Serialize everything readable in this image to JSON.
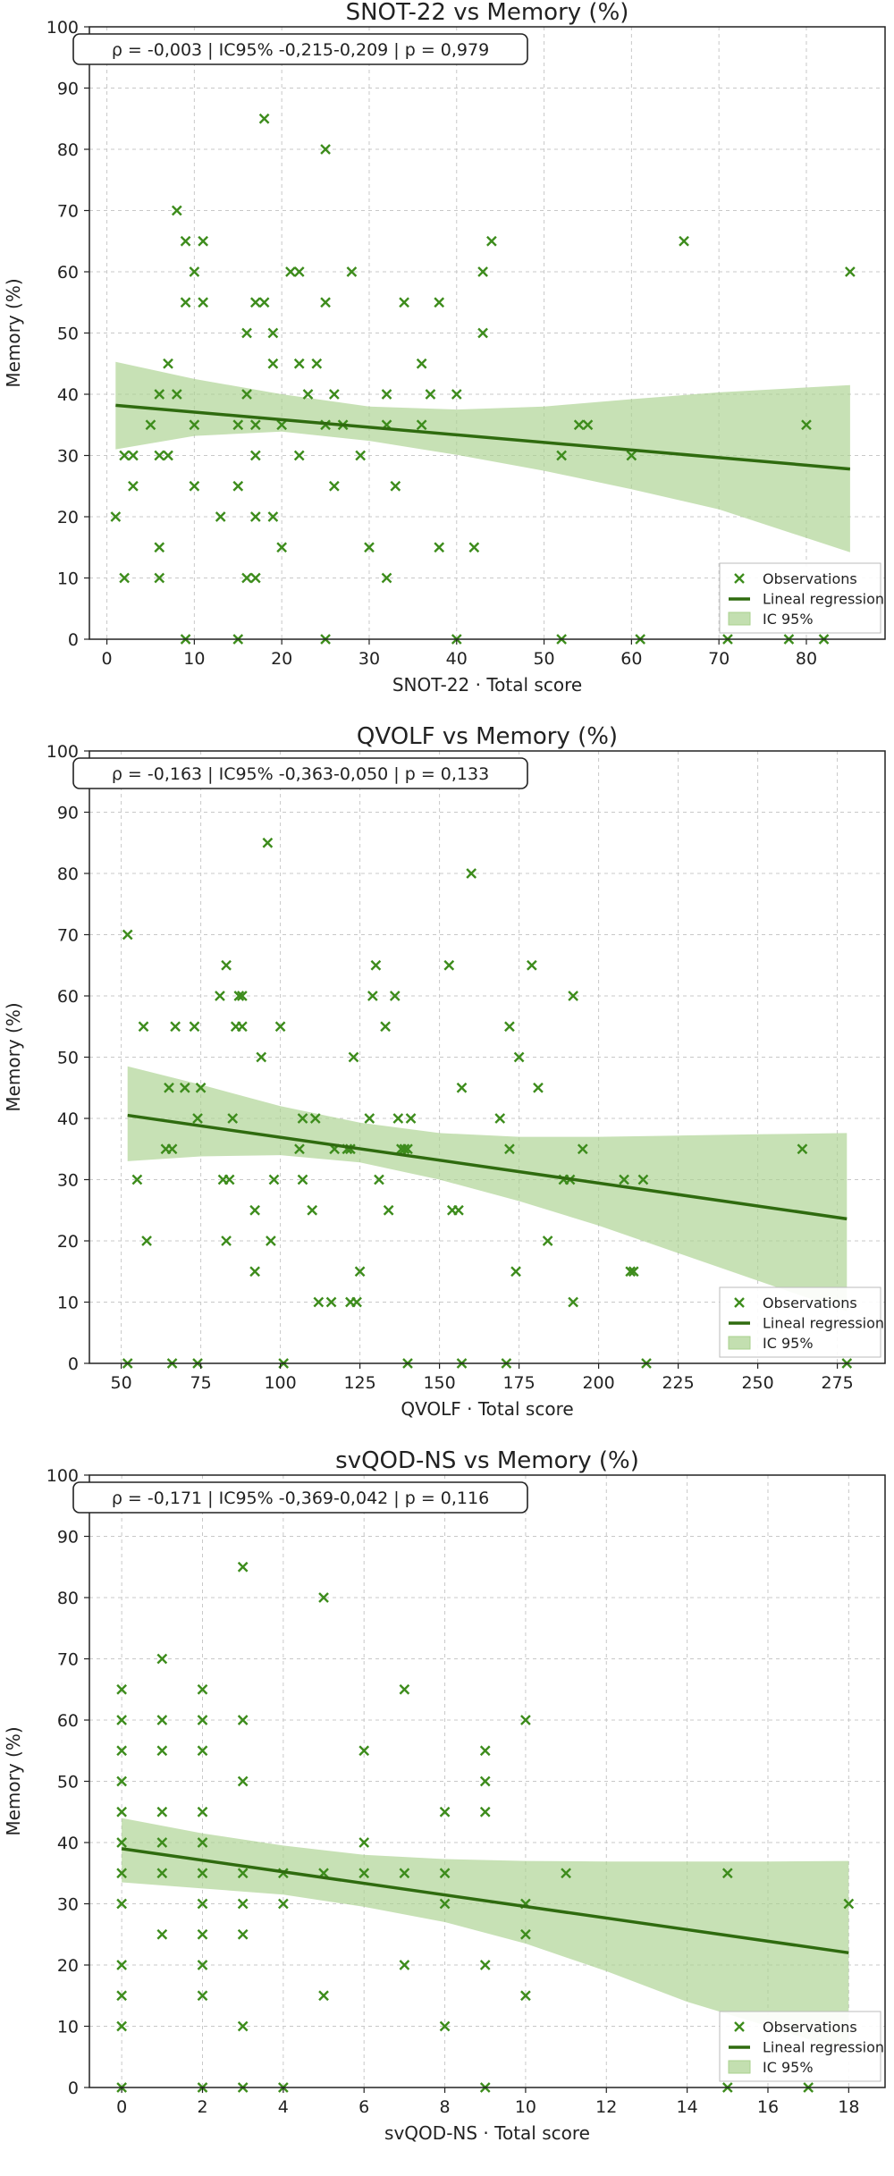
{
  "colors": {
    "marker": "#3d8c1c",
    "line": "#2f6b0f",
    "band": "#a9d18e",
    "grid": "#c8c8c8",
    "axis": "#222222",
    "text": "#222222"
  },
  "chart_data": [
    {
      "type": "scatter",
      "title": "SNOT-22 vs Memory (%)",
      "xlabel": "SNOT-22 · Total score",
      "ylabel": "Memory (%)",
      "stats": "ρ = -0,003  |  IC95% -0,215-0,209  |  p = 0,979",
      "xlim": [
        -2,
        89
      ],
      "ylim": [
        0,
        100
      ],
      "xticks": [
        0,
        10,
        20,
        30,
        40,
        50,
        60,
        70,
        80
      ],
      "yticks": [
        0,
        10,
        20,
        30,
        40,
        50,
        60,
        70,
        80,
        90,
        100
      ],
      "grid": true,
      "legend": {
        "position": "lower-right",
        "entries": [
          "Observations",
          "Lineal regression",
          "IC 95%"
        ]
      },
      "regression": {
        "x": [
          1,
          85
        ],
        "y": [
          38.2,
          27.8
        ]
      },
      "ci_band": {
        "x": [
          1,
          10,
          20,
          30,
          40,
          50,
          60,
          70,
          85
        ],
        "upper": [
          45.3,
          42.5,
          40.0,
          38.0,
          37.5,
          38.0,
          39.2,
          40.3,
          41.5
        ],
        "lower": [
          31.0,
          33.2,
          33.9,
          32.4,
          30.1,
          27.5,
          24.5,
          21.2,
          14.2
        ]
      },
      "points": [
        [
          1,
          20
        ],
        [
          2,
          10
        ],
        [
          2,
          30
        ],
        [
          3,
          30
        ],
        [
          3,
          25
        ],
        [
          5,
          35
        ],
        [
          6,
          40
        ],
        [
          6,
          30
        ],
        [
          6,
          15
        ],
        [
          6,
          10
        ],
        [
          7,
          45
        ],
        [
          7,
          30
        ],
        [
          8,
          40
        ],
        [
          8,
          70
        ],
        [
          9,
          65
        ],
        [
          9,
          55
        ],
        [
          9,
          0
        ],
        [
          10,
          60
        ],
        [
          10,
          35
        ],
        [
          10,
          25
        ],
        [
          11,
          65
        ],
        [
          11,
          55
        ],
        [
          13,
          20
        ],
        [
          15,
          25
        ],
        [
          15,
          35
        ],
        [
          15,
          0
        ],
        [
          16,
          50
        ],
        [
          16,
          40
        ],
        [
          16,
          10
        ],
        [
          17,
          10
        ],
        [
          17,
          55
        ],
        [
          17,
          35
        ],
        [
          17,
          30
        ],
        [
          17,
          20
        ],
        [
          18,
          55
        ],
        [
          18,
          85
        ],
        [
          19,
          50
        ],
        [
          19,
          45
        ],
        [
          19,
          20
        ],
        [
          20,
          35
        ],
        [
          20,
          15
        ],
        [
          21,
          60
        ],
        [
          22,
          60
        ],
        [
          22,
          45
        ],
        [
          22,
          30
        ],
        [
          23,
          40
        ],
        [
          24,
          45
        ],
        [
          25,
          80
        ],
        [
          25,
          55
        ],
        [
          25,
          35
        ],
        [
          25,
          0
        ],
        [
          26,
          40
        ],
        [
          26,
          25
        ],
        [
          27,
          35
        ],
        [
          28,
          60
        ],
        [
          29,
          30
        ],
        [
          30,
          15
        ],
        [
          32,
          40
        ],
        [
          32,
          35
        ],
        [
          32,
          10
        ],
        [
          33,
          25
        ],
        [
          34,
          55
        ],
        [
          36,
          45
        ],
        [
          36,
          35
        ],
        [
          37,
          40
        ],
        [
          38,
          55
        ],
        [
          38,
          15
        ],
        [
          40,
          40
        ],
        [
          40,
          0
        ],
        [
          42,
          15
        ],
        [
          43,
          60
        ],
        [
          43,
          50
        ],
        [
          44,
          65
        ],
        [
          52,
          30
        ],
        [
          52,
          0
        ],
        [
          54,
          35
        ],
        [
          55,
          35
        ],
        [
          60,
          30
        ],
        [
          61,
          0
        ],
        [
          66,
          65
        ],
        [
          71,
          0
        ],
        [
          78,
          0
        ],
        [
          80,
          35
        ],
        [
          82,
          0
        ],
        [
          85,
          60
        ]
      ]
    },
    {
      "type": "scatter",
      "title": "QVOLF vs Memory (%)",
      "xlabel": "QVOLF · Total score",
      "ylabel": "Memory (%)",
      "stats": "ρ = -0,163  |  IC95% -0,363-0,050  |  p = 0,133",
      "xlim": [
        40,
        290
      ],
      "ylim": [
        0,
        100
      ],
      "xticks": [
        50,
        75,
        100,
        125,
        150,
        175,
        200,
        225,
        250,
        275
      ],
      "yticks": [
        0,
        10,
        20,
        30,
        40,
        50,
        60,
        70,
        80,
        90,
        100
      ],
      "grid": true,
      "legend": {
        "position": "lower-right",
        "entries": [
          "Observations",
          "Lineal regression",
          "IC 95%"
        ]
      },
      "regression": {
        "x": [
          52,
          278
        ],
        "y": [
          40.5,
          23.6
        ]
      },
      "ci_band": {
        "x": [
          52,
          75,
          100,
          125,
          150,
          175,
          200,
          225,
          250,
          278
        ],
        "upper": [
          48.5,
          45.5,
          42.0,
          39.3,
          37.6,
          37.0,
          37.0,
          37.2,
          37.4,
          37.6
        ],
        "lower": [
          33.0,
          33.8,
          34.0,
          32.8,
          30.0,
          26.5,
          22.5,
          18.0,
          13.5,
          8.5
        ]
      },
      "points": [
        [
          52,
          70
        ],
        [
          52,
          0
        ],
        [
          55,
          30
        ],
        [
          57,
          55
        ],
        [
          58,
          20
        ],
        [
          64,
          35
        ],
        [
          65,
          45
        ],
        [
          66,
          35
        ],
        [
          66,
          0
        ],
        [
          67,
          55
        ],
        [
          70,
          45
        ],
        [
          73,
          55
        ],
        [
          74,
          40
        ],
        [
          74,
          0
        ],
        [
          75,
          45
        ],
        [
          81,
          60
        ],
        [
          82,
          30
        ],
        [
          83,
          65
        ],
        [
          83,
          20
        ],
        [
          84,
          30
        ],
        [
          85,
          40
        ],
        [
          86,
          55
        ],
        [
          87,
          60
        ],
        [
          88,
          60
        ],
        [
          88,
          55
        ],
        [
          92,
          25
        ],
        [
          92,
          15
        ],
        [
          94,
          50
        ],
        [
          96,
          85
        ],
        [
          97,
          20
        ],
        [
          98,
          30
        ],
        [
          100,
          55
        ],
        [
          101,
          0
        ],
        [
          106,
          35
        ],
        [
          107,
          40
        ],
        [
          107,
          30
        ],
        [
          110,
          25
        ],
        [
          111,
          40
        ],
        [
          112,
          10
        ],
        [
          116,
          10
        ],
        [
          117,
          35
        ],
        [
          121,
          35
        ],
        [
          122,
          35
        ],
        [
          122,
          10
        ],
        [
          123,
          50
        ],
        [
          124,
          10
        ],
        [
          125,
          15
        ],
        [
          128,
          40
        ],
        [
          129,
          60
        ],
        [
          130,
          65
        ],
        [
          131,
          30
        ],
        [
          133,
          55
        ],
        [
          134,
          25
        ],
        [
          136,
          60
        ],
        [
          137,
          40
        ],
        [
          138,
          35
        ],
        [
          139,
          35
        ],
        [
          140,
          35
        ],
        [
          140,
          0
        ],
        [
          141,
          40
        ],
        [
          153,
          65
        ],
        [
          154,
          25
        ],
        [
          156,
          25
        ],
        [
          157,
          45
        ],
        [
          157,
          0
        ],
        [
          160,
          80
        ],
        [
          169,
          40
        ],
        [
          171,
          0
        ],
        [
          172,
          55
        ],
        [
          172,
          35
        ],
        [
          174,
          15
        ],
        [
          175,
          50
        ],
        [
          179,
          65
        ],
        [
          181,
          45
        ],
        [
          184,
          20
        ],
        [
          189,
          30
        ],
        [
          191,
          30
        ],
        [
          192,
          60
        ],
        [
          192,
          10
        ],
        [
          195,
          35
        ],
        [
          208,
          30
        ],
        [
          210,
          15
        ],
        [
          211,
          15
        ],
        [
          214,
          30
        ],
        [
          215,
          0
        ],
        [
          264,
          35
        ],
        [
          278,
          0
        ]
      ]
    },
    {
      "type": "scatter",
      "title": "svQOD-NS vs Memory (%)",
      "xlabel": "svQOD-NS · Total score",
      "ylabel": "Memory (%)",
      "stats": "ρ = -0,171  |  IC95% -0,369-0,042  |  p = 0,116",
      "xlim": [
        -0.8,
        18.9
      ],
      "ylim": [
        0,
        100
      ],
      "xticks": [
        0,
        2,
        4,
        6,
        8,
        10,
        12,
        14,
        16,
        18
      ],
      "yticks": [
        0,
        10,
        20,
        30,
        40,
        50,
        60,
        70,
        80,
        90,
        100
      ],
      "grid": true,
      "legend": {
        "position": "lower-right",
        "entries": [
          "Observations",
          "Lineal regression",
          "IC 95%"
        ]
      },
      "regression": {
        "x": [
          0,
          18
        ],
        "y": [
          39.0,
          22.0
        ]
      },
      "ci_band": {
        "x": [
          0,
          2,
          4,
          6,
          8,
          10,
          12,
          14,
          16,
          18
        ],
        "upper": [
          44.0,
          41.5,
          39.5,
          38.0,
          37.3,
          37.0,
          36.9,
          36.9,
          36.9,
          37.0
        ],
        "lower": [
          33.5,
          32.5,
          31.5,
          29.5,
          27.0,
          23.5,
          19.0,
          14.0,
          10.0,
          5.8
        ]
      },
      "points": [
        [
          0,
          65
        ],
        [
          0,
          60
        ],
        [
          0,
          55
        ],
        [
          0,
          50
        ],
        [
          0,
          45
        ],
        [
          0,
          40
        ],
        [
          0,
          35
        ],
        [
          0,
          30
        ],
        [
          0,
          20
        ],
        [
          0,
          15
        ],
        [
          0,
          10
        ],
        [
          0,
          0
        ],
        [
          1,
          70
        ],
        [
          1,
          60
        ],
        [
          1,
          55
        ],
        [
          1,
          45
        ],
        [
          1,
          40
        ],
        [
          1,
          35
        ],
        [
          1,
          25
        ],
        [
          2,
          65
        ],
        [
          2,
          60
        ],
        [
          2,
          55
        ],
        [
          2,
          45
        ],
        [
          2,
          40
        ],
        [
          2,
          35
        ],
        [
          2,
          30
        ],
        [
          2,
          25
        ],
        [
          2,
          20
        ],
        [
          2,
          15
        ],
        [
          2,
          0
        ],
        [
          3,
          85
        ],
        [
          3,
          60
        ],
        [
          3,
          50
        ],
        [
          3,
          35
        ],
        [
          3,
          30
        ],
        [
          3,
          25
        ],
        [
          3,
          10
        ],
        [
          3,
          0
        ],
        [
          4,
          35
        ],
        [
          4,
          30
        ],
        [
          4,
          0
        ],
        [
          5,
          80
        ],
        [
          5,
          35
        ],
        [
          5,
          15
        ],
        [
          6,
          55
        ],
        [
          6,
          40
        ],
        [
          6,
          35
        ],
        [
          7,
          65
        ],
        [
          7,
          35
        ],
        [
          7,
          20
        ],
        [
          8,
          45
        ],
        [
          8,
          35
        ],
        [
          8,
          30
        ],
        [
          8,
          10
        ],
        [
          9,
          55
        ],
        [
          9,
          50
        ],
        [
          9,
          45
        ],
        [
          9,
          20
        ],
        [
          9,
          0
        ],
        [
          10,
          60
        ],
        [
          10,
          30
        ],
        [
          10,
          25
        ],
        [
          10,
          15
        ],
        [
          11,
          35
        ],
        [
          15,
          35
        ],
        [
          15,
          0
        ],
        [
          17,
          0
        ],
        [
          18,
          30
        ]
      ]
    }
  ]
}
